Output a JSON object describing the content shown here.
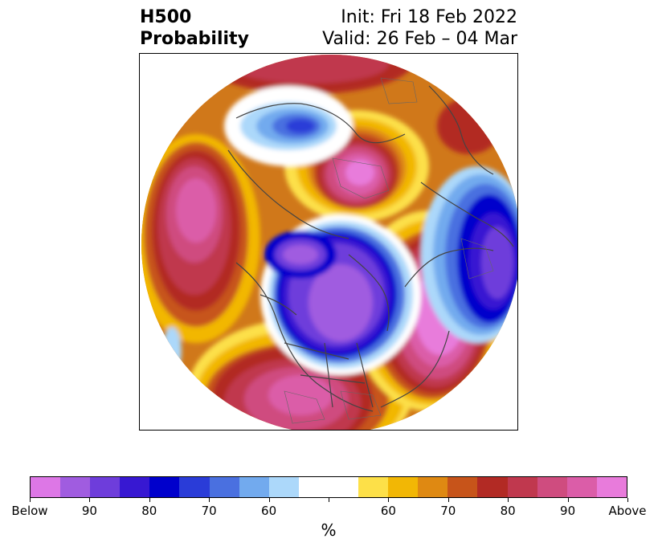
{
  "header": {
    "left_line1": "H500",
    "left_line2": "Probability",
    "right_line1": "Init: Fri 18 Feb 2022",
    "right_line2": "Valid: 26 Feb – 04 Mar"
  },
  "colorbar": {
    "colors": [
      "#dd77e6",
      "#a05ce0",
      "#6e3ddb",
      "#3718d2",
      "#0000cc",
      "#2a3cd8",
      "#4a70e0",
      "#72aaee",
      "#acd8fa",
      "#ffffff",
      "#ffffff",
      "#fde048",
      "#f2b705",
      "#df8912",
      "#c7541a",
      "#b22a24",
      "#c0384e",
      "#cf4c7f",
      "#db5da8",
      "#e87bdb"
    ],
    "labels": [
      "Below",
      "90",
      "80",
      "70",
      "60",
      "",
      "60",
      "70",
      "80",
      "90",
      "Above"
    ],
    "unit": "%"
  }
}
